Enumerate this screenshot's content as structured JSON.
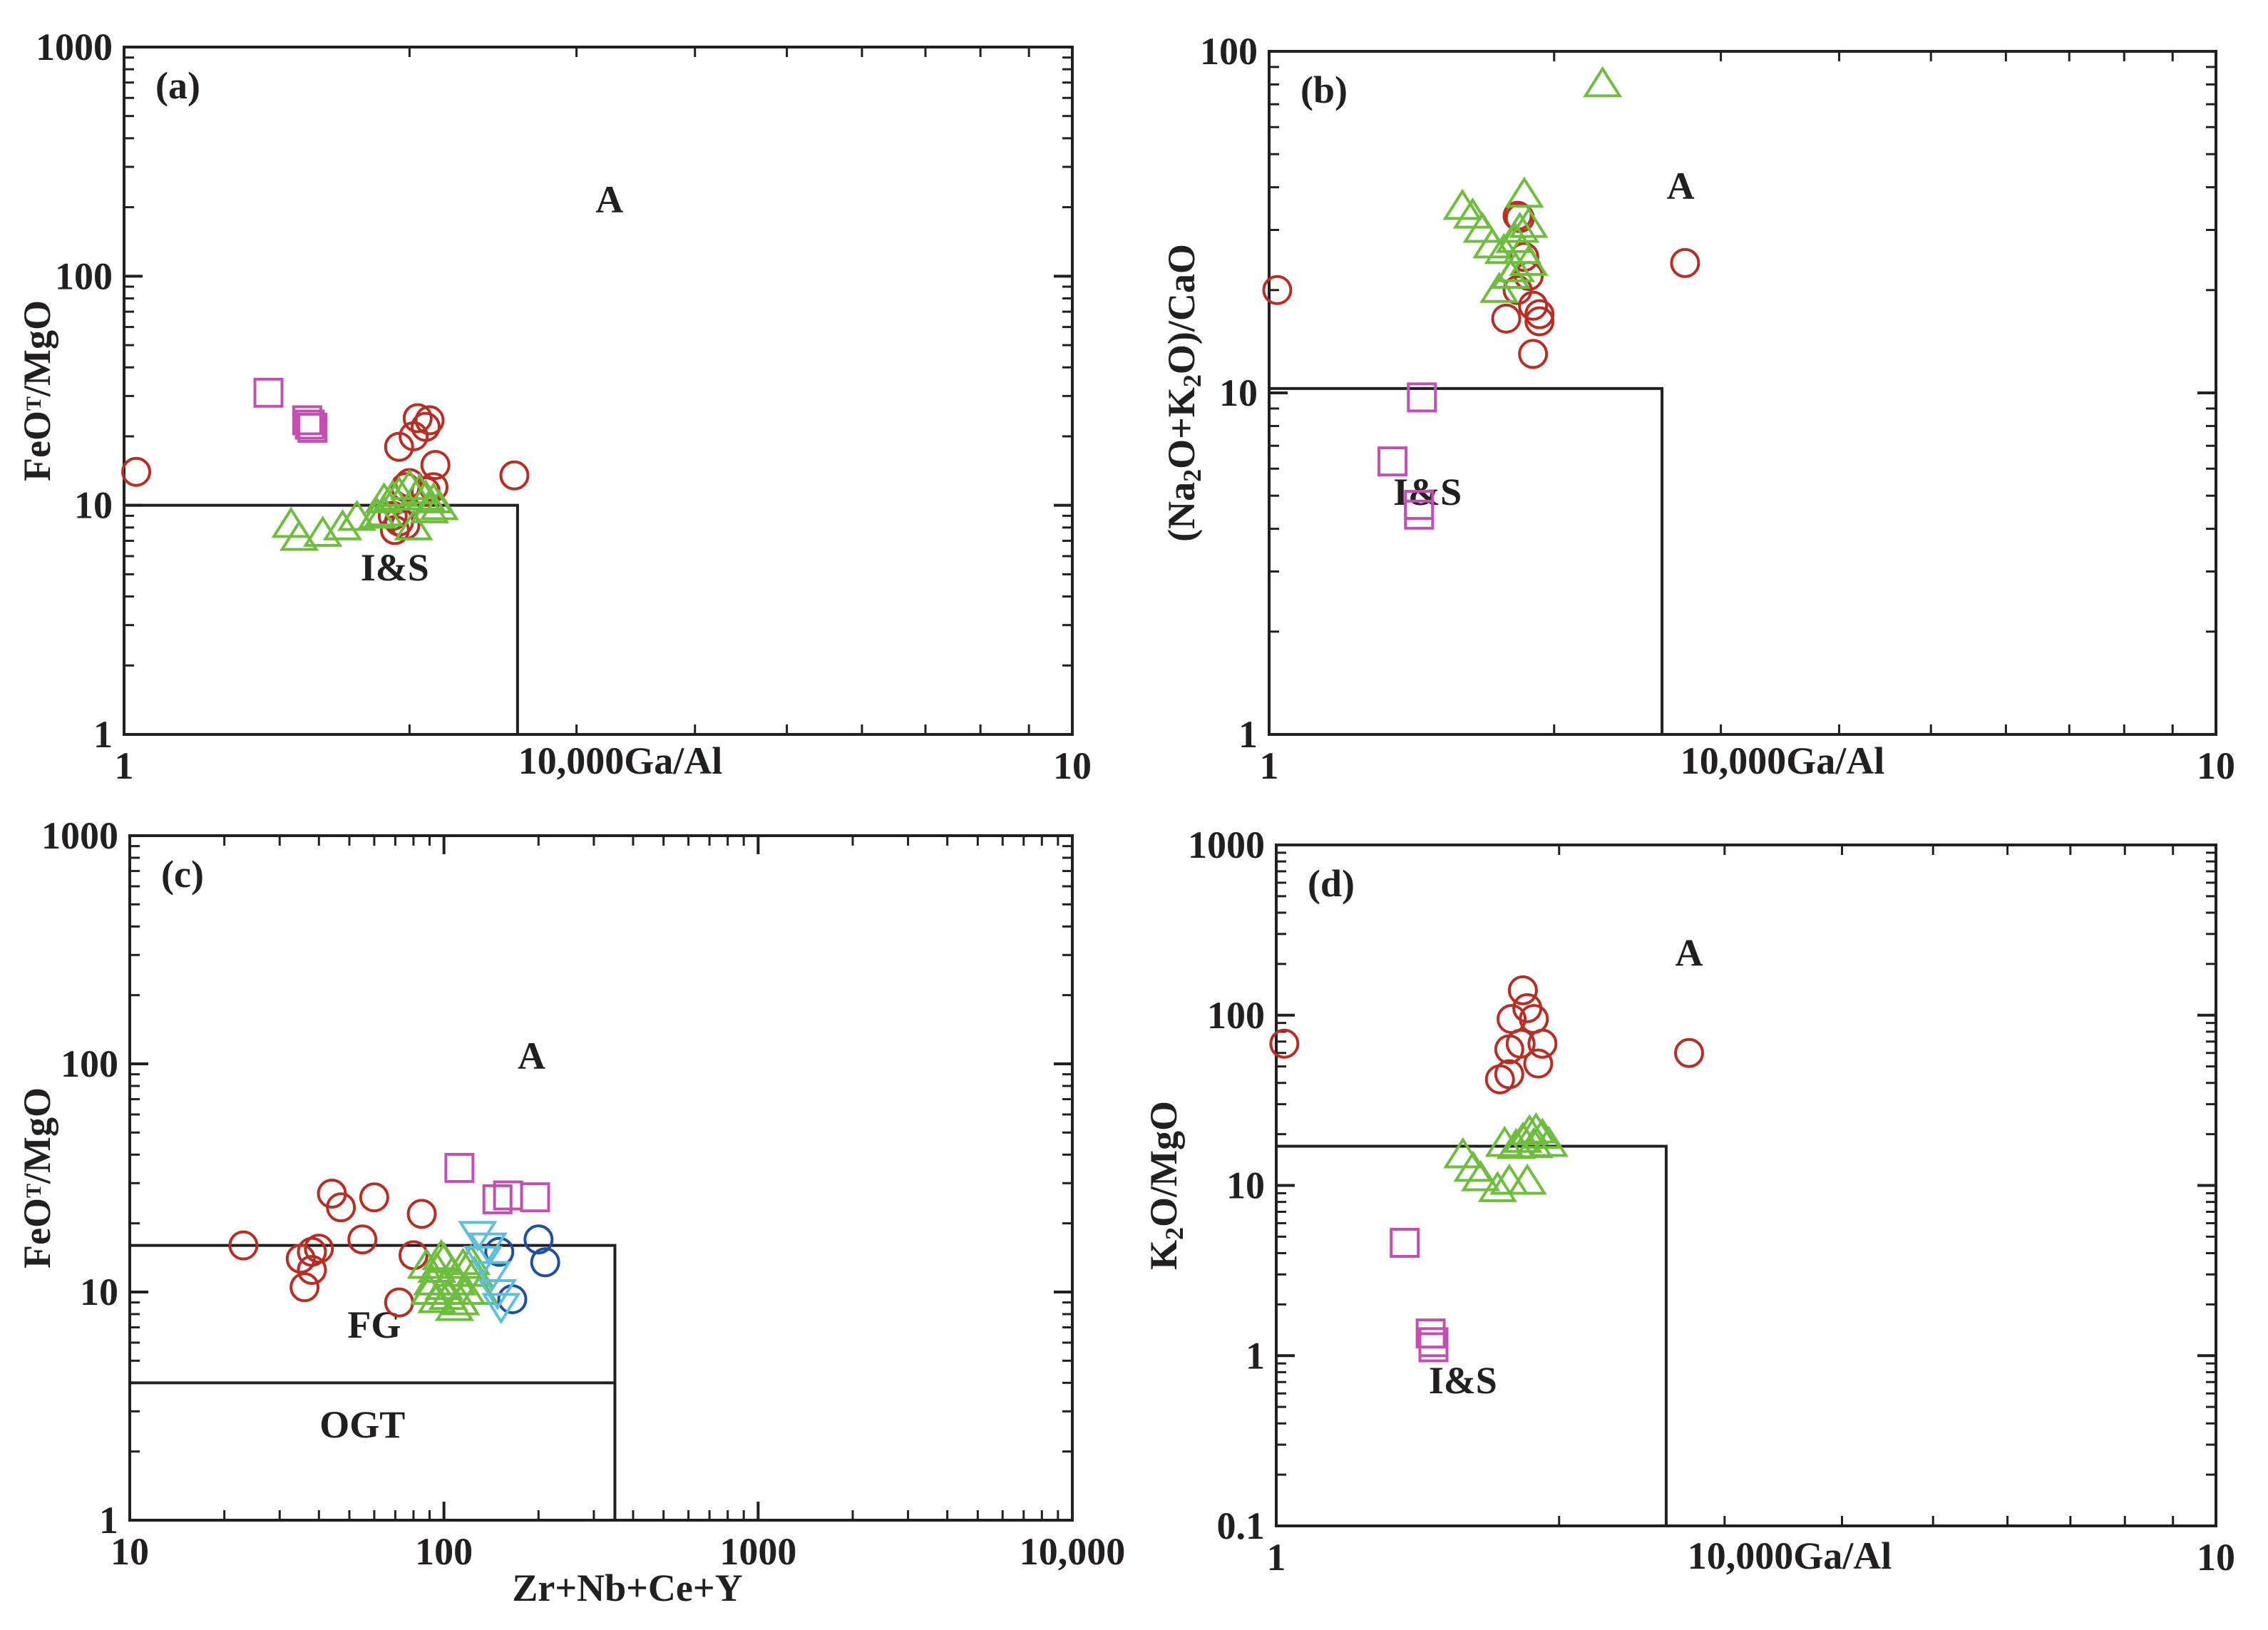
{
  "colors": {
    "ink": "#231f20",
    "red": "#b72e25",
    "green": "#6fbd3e",
    "magenta": "#c34fb2",
    "blue": "#1f4fa1",
    "cyan": "#5fbfd9"
  },
  "chart_data": [
    {
      "type": "scatter",
      "panel_label": "(a)",
      "xlabel": "10,000Ga/Al",
      "ylabel": {
        "main": "FeO",
        "sup": "T",
        "rest": "/MgO"
      },
      "xscale": "log",
      "yscale": "log",
      "xlim": [
        1,
        10
      ],
      "ylim": [
        1,
        1000
      ],
      "x_ticks": [
        "1",
        "10"
      ],
      "y_ticks": [
        "1",
        "10",
        "100",
        "1000"
      ],
      "boundary": [
        [
          1,
          10
        ],
        [
          2.6,
          10
        ],
        [
          2.6,
          1
        ]
      ],
      "region_labels": [
        {
          "text": "A",
          "x": 3.25,
          "y": 190
        },
        {
          "text": "I&S",
          "x": 1.93,
          "y": 4.7
        }
      ],
      "series": [
        {
          "name": "red circles",
          "marker": "circle",
          "color": "red",
          "points": [
            [
              1.03,
              14
            ],
            [
              2.58,
              13.5
            ],
            [
              1.95,
              18
            ],
            [
              2.02,
              20
            ],
            [
              2.08,
              22
            ],
            [
              2.1,
              23.5
            ],
            [
              2.04,
              24
            ],
            [
              2.13,
              15
            ],
            [
              2.0,
              12.5
            ],
            [
              1.98,
              12
            ],
            [
              2.08,
              11.5
            ],
            [
              2.12,
              12
            ],
            [
              1.92,
              9
            ],
            [
              1.95,
              8.5
            ],
            [
              1.93,
              7.8
            ],
            [
              1.98,
              8.2
            ]
          ]
        },
        {
          "name": "green triangles",
          "marker": "triangle-up",
          "color": "green",
          "points": [
            [
              1.5,
              8.2
            ],
            [
              1.53,
              7.2
            ],
            [
              1.62,
              7.5
            ],
            [
              1.7,
              8
            ],
            [
              1.76,
              8.8
            ],
            [
              1.85,
              9
            ],
            [
              1.88,
              10.5
            ],
            [
              1.92,
              10.8
            ],
            [
              1.95,
              11.2
            ],
            [
              2.0,
              12
            ],
            [
              2.05,
              11.5
            ],
            [
              2.08,
              10.8
            ],
            [
              2.12,
              10.5
            ],
            [
              2.15,
              9.8
            ],
            [
              2.1,
              9.5
            ],
            [
              2.02,
              8
            ],
            [
              1.88,
              9.2
            ]
          ]
        },
        {
          "name": "magenta squares",
          "marker": "square",
          "color": "magenta",
          "points": [
            [
              1.42,
              31
            ],
            [
              1.56,
              23.5
            ],
            [
              1.57,
              22.5
            ],
            [
              1.58,
              21.8
            ]
          ]
        }
      ]
    },
    {
      "type": "scatter",
      "panel_label": "(b)",
      "xlabel": "10,000Ga/Al",
      "ylabel": {
        "text": "(Na2O+K2O)/CaO"
      },
      "xscale": "log",
      "yscale": "log",
      "xlim": [
        1,
        10
      ],
      "ylim": [
        1,
        100
      ],
      "x_ticks": [
        "1",
        "10"
      ],
      "y_ticks": [
        "1",
        "10",
        "100"
      ],
      "boundary": [
        [
          1,
          10.3
        ],
        [
          2.6,
          10.3
        ],
        [
          2.6,
          1
        ]
      ],
      "region_labels": [
        {
          "text": "A",
          "x": 2.72,
          "y": 37
        },
        {
          "text": "I&S",
          "x": 1.47,
          "y": 4.7
        }
      ],
      "series": [
        {
          "name": "red circles",
          "marker": "circle",
          "color": "red",
          "points": [
            [
              1.02,
              20
            ],
            [
              2.75,
              24
            ],
            [
              1.83,
              33
            ],
            [
              1.84,
              32.5
            ],
            [
              1.86,
              25
            ],
            [
              1.88,
              22
            ],
            [
              1.83,
              20
            ],
            [
              1.9,
              18
            ],
            [
              1.93,
              17
            ],
            [
              1.93,
              16.2
            ],
            [
              1.78,
              16.5
            ],
            [
              1.9,
              13
            ]
          ]
        },
        {
          "name": "green triangles",
          "marker": "triangle-up",
          "color": "green",
          "points": [
            [
              2.25,
              80
            ],
            [
              1.6,
              35
            ],
            [
              1.64,
              33
            ],
            [
              1.68,
              30
            ],
            [
              1.72,
              27
            ],
            [
              1.77,
              26
            ],
            [
              1.82,
              28
            ],
            [
              1.84,
              30
            ],
            [
              1.86,
              38
            ],
            [
              1.88,
              31
            ],
            [
              1.82,
              23
            ],
            [
              1.75,
              20
            ],
            [
              1.88,
              24
            ],
            [
              1.8,
              22
            ],
            [
              1.85,
              26
            ]
          ]
        },
        {
          "name": "magenta squares",
          "marker": "square",
          "color": "magenta",
          "points": [
            [
              1.35,
              6.3
            ],
            [
              1.45,
              9.7
            ],
            [
              1.44,
              4.7
            ],
            [
              1.44,
              4.4
            ]
          ]
        }
      ]
    },
    {
      "type": "scatter",
      "panel_label": "(c)",
      "xlabel": "Zr+Nb+Ce+Y",
      "ylabel": {
        "main": "FeO",
        "sup": "T",
        "rest": "/MgO"
      },
      "xscale": "log",
      "yscale": "log",
      "xlim": [
        10,
        10000
      ],
      "ylim": [
        1,
        1000
      ],
      "x_ticks": [
        "10",
        "100",
        "1000",
        "10,000"
      ],
      "y_ticks": [
        "1",
        "10",
        "100",
        "1000"
      ],
      "boundary_fg": [
        [
          10,
          16
        ],
        [
          350,
          16
        ],
        [
          350,
          1
        ]
      ],
      "boundary_ogt": [
        [
          10,
          4
        ],
        [
          350,
          4
        ]
      ],
      "region_labels": [
        {
          "text": "A",
          "x": 190,
          "y": 95
        },
        {
          "text": "FG",
          "x": 60,
          "y": 6.3
        },
        {
          "text": "OGT",
          "x": 55,
          "y": 2.3
        }
      ],
      "series": [
        {
          "name": "red circles",
          "marker": "circle",
          "color": "red",
          "points": [
            [
              23,
              16
            ],
            [
              35,
              14
            ],
            [
              38,
              15
            ],
            [
              40,
              15.5
            ],
            [
              44,
              27
            ],
            [
              47,
              23.5
            ],
            [
              55,
              17
            ],
            [
              60,
              26
            ],
            [
              72,
              9
            ],
            [
              80,
              14.5
            ],
            [
              85,
              22
            ],
            [
              36,
              10.5
            ],
            [
              38,
              12.5
            ]
          ]
        },
        {
          "name": "green triangles",
          "marker": "triangle-up",
          "color": "green",
          "points": [
            [
              88,
              13
            ],
            [
              92,
              11
            ],
            [
              95,
              12.5
            ],
            [
              98,
              14.2
            ],
            [
              100,
              10.5
            ],
            [
              103,
              9.5
            ],
            [
              106,
              12
            ],
            [
              110,
              11
            ],
            [
              113,
              9
            ],
            [
              118,
              10
            ],
            [
              122,
              13.5
            ],
            [
              125,
              12
            ],
            [
              130,
              10
            ],
            [
              95,
              9.2
            ],
            [
              108,
              8.5
            ],
            [
              115,
              13
            ],
            [
              90,
              10
            ],
            [
              100,
              13.8
            ]
          ]
        },
        {
          "name": "blue circles",
          "marker": "circle",
          "color": "blue",
          "points": [
            [
              150,
              15
            ],
            [
              165,
              9.3
            ],
            [
              200,
              17
            ],
            [
              210,
              13.5
            ]
          ]
        },
        {
          "name": "cyan inverted triangles",
          "marker": "triangle-down",
          "color": "cyan",
          "points": [
            [
              128,
              18
            ],
            [
              138,
              16
            ],
            [
              142,
              12
            ],
            [
              148,
              10
            ],
            [
              152,
              8.7
            ],
            [
              133,
              14
            ]
          ]
        },
        {
          "name": "magenta squares",
          "marker": "square",
          "color": "magenta",
          "points": [
            [
              112,
              35
            ],
            [
              148,
              25.5
            ],
            [
              160,
              26.5
            ],
            [
              195,
              26
            ]
          ]
        }
      ]
    },
    {
      "type": "scatter",
      "panel_label": "(d)",
      "xlabel": "10,000Ga/Al",
      "ylabel": {
        "main": "K",
        "sub": "2",
        "rest": "O/MgO"
      },
      "xscale": "log",
      "yscale": "log",
      "xlim": [
        1,
        10
      ],
      "ylim": [
        0.1,
        1000
      ],
      "x_ticks": [
        "1",
        "10"
      ],
      "y_ticks": [
        "0.1",
        "1",
        "10",
        "100",
        "1000"
      ],
      "boundary": [
        [
          1,
          17
        ],
        [
          2.6,
          17
        ],
        [
          2.6,
          0.1
        ]
      ],
      "region_labels": [
        {
          "text": "A",
          "x": 2.75,
          "y": 195
        },
        {
          "text": "I&S",
          "x": 1.58,
          "y": 0.6
        }
      ],
      "series": [
        {
          "name": "red circles",
          "marker": "circle",
          "color": "red",
          "points": [
            [
              1.02,
              68
            ],
            [
              2.75,
              60
            ],
            [
              1.83,
              140
            ],
            [
              1.85,
              110
            ],
            [
              1.88,
              95
            ],
            [
              1.78,
              95
            ],
            [
              1.82,
              68
            ],
            [
              1.77,
              63
            ],
            [
              1.92,
              68
            ],
            [
              1.9,
              52
            ],
            [
              1.73,
              42
            ],
            [
              1.77,
              45
            ]
          ]
        },
        {
          "name": "green triangles",
          "marker": "triangle-up",
          "color": "green",
          "points": [
            [
              1.58,
              15
            ],
            [
              1.62,
              12.5
            ],
            [
              1.65,
              11
            ],
            [
              1.72,
              9.5
            ],
            [
              1.77,
              10.5
            ],
            [
              1.8,
              17
            ],
            [
              1.83,
              18.5
            ],
            [
              1.86,
              20.5
            ],
            [
              1.89,
              21
            ],
            [
              1.92,
              19.5
            ],
            [
              1.95,
              17.5
            ],
            [
              1.85,
              10.5
            ],
            [
              1.75,
              17.5
            ],
            [
              1.88,
              17.2
            ]
          ]
        },
        {
          "name": "magenta squares",
          "marker": "square",
          "color": "magenta",
          "points": [
            [
              1.37,
              4.6
            ],
            [
              1.46,
              1.35
            ],
            [
              1.47,
              1.2
            ],
            [
              1.47,
              1.12
            ]
          ]
        }
      ]
    }
  ]
}
